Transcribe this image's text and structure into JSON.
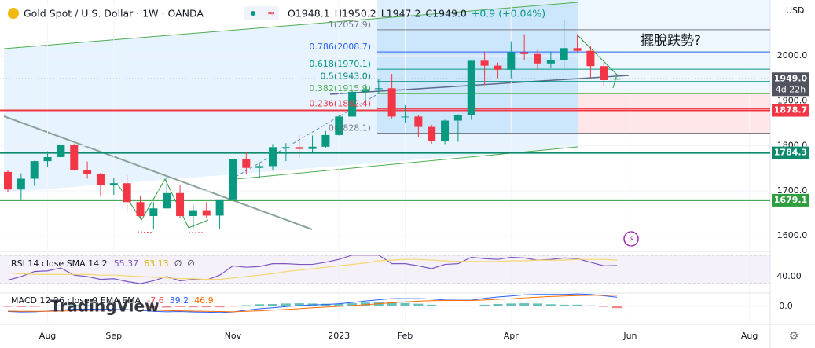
{
  "header": {
    "title": "Gold Spot / U.S. Dollar · 1W · OANDA",
    "ohlc": [
      "O1948.1",
      "H1950.2",
      "L1947.2",
      "C1949.0",
      "+0.9 (+0.04%)"
    ],
    "currency": "USD"
  },
  "chart_data": [
    {
      "type": "candlestick",
      "categories": [
        null,
        null,
        null,
        "Aug",
        null,
        null,
        null,
        null,
        "Sep",
        null,
        null,
        null,
        null,
        null,
        null,
        null,
        null,
        "Nov",
        null,
        null,
        null,
        null,
        null,
        null,
        null,
        "2023",
        null,
        null,
        null,
        null,
        "Feb",
        null,
        null,
        null,
        null,
        null,
        null,
        null,
        "Apr",
        null,
        null,
        null,
        null,
        null,
        null,
        null,
        null,
        "Jun",
        null,
        null,
        null,
        null,
        null,
        null,
        null,
        null,
        "Aug",
        null
      ],
      "open": [
        1742,
        1703,
        1727,
        1766,
        1775,
        1802,
        1747,
        1738,
        1712,
        1717,
        1675,
        1644,
        1661,
        1695,
        1644,
        1657,
        1645,
        1681,
        1771,
        1751,
        1755,
        1797,
        1797,
        1793,
        1798,
        1824,
        1865,
        1920,
        1926,
        1928,
        1865,
        1865,
        1842,
        1811,
        1856,
        1868,
        1989,
        1978,
        1969,
        2008,
        2004,
        1983,
        1990,
        2017,
        2011,
        1977,
        1948.1,
        null,
        null,
        null,
        null,
        null,
        null,
        null,
        null,
        null,
        null,
        null
      ],
      "high": [
        1745,
        1739,
        1767,
        1788,
        1807,
        1804,
        1765,
        1740,
        1729,
        1735,
        1688,
        1675,
        1730,
        1712,
        1669,
        1675,
        1681,
        1774,
        1786,
        1761,
        1804,
        1806,
        1824,
        1823,
        1833,
        1869,
        1922,
        1937,
        1949,
        1960,
        1890,
        1868,
        1847,
        1858,
        1870,
        1989,
        2010,
        1985,
        2032,
        2048,
        2013,
        2010,
        2079,
        2048,
        2022,
        1985,
        1950.2,
        null,
        null,
        null,
        null,
        null,
        null,
        null,
        null,
        null,
        null,
        null
      ],
      "low": [
        1697,
        1681,
        1711,
        1754,
        1773,
        1745,
        1727,
        1688,
        1691,
        1654,
        1640,
        1615,
        1660,
        1640,
        1617,
        1639,
        1616,
        1679,
        1737,
        1728,
        1745,
        1766,
        1773,
        1784,
        1796,
        1823,
        1865,
        1896,
        1916,
        1861,
        1852,
        1819,
        1805,
        1804,
        1809,
        1858,
        1935,
        1950,
        1950,
        1990,
        1969,
        1974,
        1974,
        2009,
        1951,
        1932,
        1947.2,
        null,
        null,
        null,
        null,
        null,
        null,
        null,
        null,
        null,
        null,
        null
      ],
      "close": [
        1703,
        1727,
        1766,
        1775,
        1802,
        1747,
        1738,
        1712,
        1717,
        1675,
        1644,
        1661,
        1695,
        1644,
        1657,
        1645,
        1681,
        1771,
        1751,
        1755,
        1797,
        1797,
        1793,
        1798,
        1824,
        1865,
        1920,
        1926,
        1928,
        1865,
        1865,
        1842,
        1811,
        1856,
        1868,
        1989,
        1978,
        1969,
        2008,
        2004,
        1983,
        1990,
        2017,
        2011,
        1977,
        1946,
        1949.0,
        null,
        null,
        null,
        null,
        null,
        null,
        null,
        null,
        null,
        null,
        null
      ],
      "up_color": "#089981",
      "down_color": "#f23645",
      "ylim": [
        1569,
        2124
      ],
      "yticks": [
        {
          "value": 1600,
          "label": "1600.0"
        },
        {
          "value": 1700,
          "label": "1700.0"
        },
        {
          "value": 1800,
          "label": "1800.0"
        },
        {
          "value": 1900,
          "label": "1900.0"
        },
        {
          "value": 2000,
          "label": "2000.0"
        }
      ],
      "grid": true,
      "current_price": {
        "value": 1949.0,
        "label": "1949.0",
        "countdown": "4d 22h"
      },
      "horizontal_lines": [
        {
          "value": 1878.7,
          "color": "#f23645"
        },
        {
          "value": 1784.3,
          "color": "#0b8a6e"
        },
        {
          "value": 1679.1,
          "color": "#2e9e3e"
        }
      ],
      "fibonacci": [
        {
          "value": 2057.9,
          "label": "1(2057.9)",
          "color": "#787b86"
        },
        {
          "value": 2008.7,
          "label": "0.786(2008.7)",
          "color": "#2962ff"
        },
        {
          "value": 1970.1,
          "label": "0.618(1970.1)",
          "color": "#089981"
        },
        {
          "value": 1943.0,
          "label": "0.5(1943.0)",
          "color": "#00897b"
        },
        {
          "value": 1915.9,
          "label": "0.382(1915.9)",
          "color": "#4caf50"
        },
        {
          "value": 1882.4,
          "label": "0.236(1882.4)",
          "color": "#f23645"
        },
        {
          "value": 1828.1,
          "label": "0(1828.1)",
          "color": "#787b86"
        }
      ],
      "annotation": "擺脫跌勢?",
      "watermark": "TradingView"
    },
    {
      "type": "line",
      "title": "RSI 14 close SMA 14 2",
      "legend_values": [
        "55.37",
        "63.13",
        "∅",
        "∅"
      ],
      "ylim": [
        18,
        73
      ],
      "yticks": [
        {
          "value": 40,
          "label": "40.00"
        }
      ],
      "band": [
        30,
        70
      ],
      "series": [
        {
          "color": "#7e57c2",
          "values": [
            35,
            40,
            47,
            48,
            52,
            42,
            40,
            36,
            37,
            33,
            30,
            34,
            40,
            34,
            36,
            35,
            42,
            55,
            53,
            54,
            58,
            58,
            57,
            57,
            60,
            64,
            70,
            70,
            70,
            58,
            58,
            55,
            51,
            57,
            58,
            67,
            65,
            64,
            67,
            66,
            63,
            64,
            66,
            65,
            60,
            55,
            55.37,
            null,
            null,
            null,
            null,
            null,
            null,
            null,
            null,
            null,
            null,
            null
          ]
        },
        {
          "color": "#f5d76e",
          "values": [
            45,
            44,
            43,
            43,
            43,
            43,
            43,
            42,
            42,
            41,
            40,
            39,
            38,
            37,
            37,
            36,
            36,
            38,
            40,
            42,
            44,
            47,
            49,
            51,
            53,
            55,
            57,
            59,
            62,
            63,
            64,
            64,
            63,
            62,
            61,
            61,
            61,
            61,
            62,
            62,
            63,
            63,
            63,
            64,
            64,
            64,
            63.13,
            null,
            null,
            null,
            null,
            null,
            null,
            null,
            null,
            null,
            null,
            null
          ]
        }
      ]
    },
    {
      "type": "macd",
      "title": "MACD 12 26 close 9 EMA EMA",
      "legend_values": [
        "-7.6",
        "39.2",
        "46.9"
      ],
      "ylim": [
        -67,
        50
      ],
      "yticks": [
        {
          "value": 0,
          "label": "0.0"
        }
      ],
      "series": [
        {
          "color": "#26a69a",
          "negative_color": "#ef5350",
          "values": [
            -2,
            -3,
            -2,
            1,
            4,
            6,
            5,
            4,
            2,
            1,
            -2,
            -5,
            -5,
            -3,
            -4,
            -4,
            -4,
            -1,
            5,
            9,
            10,
            12,
            13,
            12,
            11,
            11,
            13,
            16,
            17,
            18,
            14,
            11,
            7,
            2,
            1,
            1,
            7,
            10,
            12,
            13,
            12,
            9,
            7,
            7,
            4,
            -2,
            -7.6,
            null,
            null,
            null,
            null,
            null,
            null,
            null,
            null,
            null,
            null,
            null
          ]
        },
        {
          "color": "#2962ff",
          "values": [
            -22,
            -24,
            -23,
            -20,
            -16,
            -12,
            -12,
            -12,
            -13,
            -14,
            -17,
            -21,
            -23,
            -22,
            -24,
            -25,
            -26,
            -24,
            -16,
            -10,
            -6,
            -1,
            3,
            6,
            8,
            11,
            16,
            23,
            28,
            33,
            33,
            33,
            31,
            27,
            26,
            26,
            34,
            40,
            44,
            49,
            51,
            51,
            51,
            53,
            51,
            45,
            39.2,
            null,
            null,
            null,
            null,
            null,
            null,
            null,
            null,
            null,
            null,
            null
          ]
        },
        {
          "color": "#ff6d00",
          "values": [
            -20,
            -21,
            -21,
            -21,
            -20,
            -18,
            -17,
            -16,
            -15,
            -15,
            -15,
            -16,
            -18,
            -19,
            -20,
            -21,
            -22,
            -23,
            -21,
            -19,
            -16,
            -13,
            -10,
            -6,
            -3,
            0,
            3,
            7,
            11,
            15,
            19,
            22,
            24,
            25,
            25,
            25,
            27,
            30,
            32,
            36,
            39,
            42,
            44,
            46,
            47,
            47,
            46.9,
            null,
            null,
            null,
            null,
            null,
            null,
            null,
            null,
            null,
            null,
            null
          ]
        }
      ]
    }
  ]
}
